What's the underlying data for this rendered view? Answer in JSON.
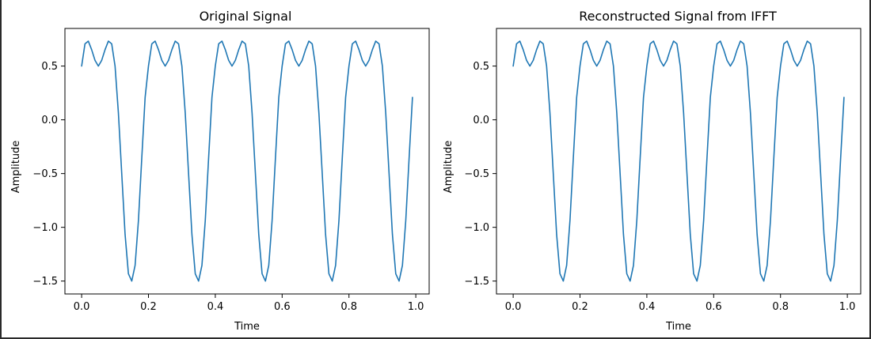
{
  "colors": {
    "line": "#1f77b4",
    "axes": "#000000",
    "background": "#ffffff"
  },
  "chart_data": [
    {
      "type": "line",
      "title": "Original Signal",
      "xlabel": "Time",
      "ylabel": "Amplitude",
      "xlim": [
        -0.05,
        1.04
      ],
      "ylim": [
        -1.62,
        0.85
      ],
      "xticks": [
        0.0,
        0.2,
        0.4,
        0.6,
        0.8,
        1.0
      ],
      "xtick_labels": [
        "0.0",
        "0.2",
        "0.4",
        "0.6",
        "0.8",
        "1.0"
      ],
      "yticks": [
        -1.5,
        -1.0,
        -0.5,
        0.0,
        0.5
      ],
      "ytick_labels": [
        "−1.5",
        "−1.0",
        "−0.5",
        "0.0",
        "0.5"
      ],
      "grid": false,
      "series": [
        {
          "x_start": 0.0,
          "x_step": 0.01,
          "values": [
            0.5,
            0.707,
            0.732,
            0.652,
            0.553,
            0.5,
            0.553,
            0.652,
            0.732,
            0.707,
            0.5,
            0.065,
            -0.5,
            -1.065,
            -1.432,
            -1.5,
            -1.354,
            -0.936,
            -0.354,
            0.209,
            0.5,
            0.707,
            0.732,
            0.652,
            0.553,
            0.5,
            0.553,
            0.652,
            0.732,
            0.707,
            0.5,
            0.065,
            -0.5,
            -1.065,
            -1.432,
            -1.5,
            -1.354,
            -0.936,
            -0.354,
            0.209,
            0.5,
            0.707,
            0.732,
            0.652,
            0.553,
            0.5,
            0.553,
            0.652,
            0.732,
            0.707,
            0.5,
            0.065,
            -0.5,
            -1.065,
            -1.432,
            -1.5,
            -1.354,
            -0.936,
            -0.354,
            0.209,
            0.5,
            0.707,
            0.732,
            0.652,
            0.553,
            0.5,
            0.553,
            0.652,
            0.732,
            0.707,
            0.5,
            0.065,
            -0.5,
            -1.065,
            -1.432,
            -1.5,
            -1.354,
            -0.936,
            -0.354,
            0.209,
            0.5,
            0.707,
            0.732,
            0.652,
            0.553,
            0.5,
            0.553,
            0.652,
            0.732,
            0.707,
            0.5,
            0.065,
            -0.5,
            -1.065,
            -1.432,
            -1.5,
            -1.354,
            -0.936,
            -0.354,
            0.209
          ]
        }
      ]
    },
    {
      "type": "line",
      "title": "Reconstructed Signal from IFFT",
      "xlabel": "Time",
      "ylabel": "Amplitude",
      "xlim": [
        -0.05,
        1.04
      ],
      "ylim": [
        -1.62,
        0.85
      ],
      "xticks": [
        0.0,
        0.2,
        0.4,
        0.6,
        0.8,
        1.0
      ],
      "xtick_labels": [
        "0.0",
        "0.2",
        "0.4",
        "0.6",
        "0.8",
        "1.0"
      ],
      "yticks": [
        -1.5,
        -1.0,
        -0.5,
        0.0,
        0.5
      ],
      "ytick_labels": [
        "−1.5",
        "−1.0",
        "−0.5",
        "0.0",
        "0.5"
      ],
      "grid": false,
      "series": [
        {
          "x_start": 0.0,
          "x_step": 0.01,
          "values": [
            0.5,
            0.707,
            0.732,
            0.652,
            0.553,
            0.5,
            0.553,
            0.652,
            0.732,
            0.707,
            0.5,
            0.065,
            -0.5,
            -1.065,
            -1.432,
            -1.5,
            -1.354,
            -0.936,
            -0.354,
            0.209,
            0.5,
            0.707,
            0.732,
            0.652,
            0.553,
            0.5,
            0.553,
            0.652,
            0.732,
            0.707,
            0.5,
            0.065,
            -0.5,
            -1.065,
            -1.432,
            -1.5,
            -1.354,
            -0.936,
            -0.354,
            0.209,
            0.5,
            0.707,
            0.732,
            0.652,
            0.553,
            0.5,
            0.553,
            0.652,
            0.732,
            0.707,
            0.5,
            0.065,
            -0.5,
            -1.065,
            -1.432,
            -1.5,
            -1.354,
            -0.936,
            -0.354,
            0.209,
            0.5,
            0.707,
            0.732,
            0.652,
            0.553,
            0.5,
            0.553,
            0.652,
            0.732,
            0.707,
            0.5,
            0.065,
            -0.5,
            -1.065,
            -1.432,
            -1.5,
            -1.354,
            -0.936,
            -0.354,
            0.209,
            0.5,
            0.707,
            0.732,
            0.652,
            0.553,
            0.5,
            0.553,
            0.652,
            0.732,
            0.707,
            0.5,
            0.065,
            -0.5,
            -1.065,
            -1.432,
            -1.5,
            -1.354,
            -0.936,
            -0.354,
            0.209
          ]
        }
      ]
    }
  ]
}
